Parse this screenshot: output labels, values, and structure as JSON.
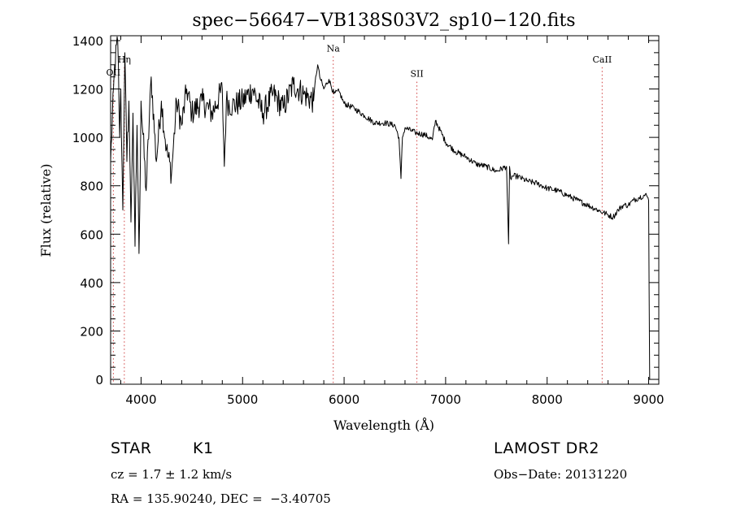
{
  "chart_data": {
    "type": "line",
    "title": "spec−56647−VB138S03V2_sp10−120.fits",
    "xlabel": "Wavelength (Å)",
    "ylabel": "Flux (relative)",
    "xlim": [
      3700,
      9100
    ],
    "ylim": [
      -20,
      1420
    ],
    "x_ticks": [
      4000,
      5000,
      6000,
      7000,
      8000,
      9000
    ],
    "x_tick_labels": [
      "4000",
      "5000",
      "6000",
      "7000",
      "8000",
      "9000"
    ],
    "y_ticks": [
      0,
      200,
      400,
      600,
      800,
      1000,
      1200,
      1400
    ],
    "y_tick_labels": [
      "0",
      "200",
      "400",
      "600",
      "800",
      "1000",
      "1200",
      "1400"
    ],
    "series": [
      {
        "name": "spectrum",
        "x": [
          3700,
          3740,
          3770,
          3790,
          3800,
          3820,
          3840,
          3860,
          3880,
          3900,
          3920,
          3940,
          3960,
          3980,
          4000,
          4050,
          4100,
          4150,
          4200,
          4250,
          4300,
          4350,
          4400,
          4450,
          4500,
          4600,
          4700,
          4800,
          4820,
          4840,
          4900,
          5000,
          5100,
          5200,
          5300,
          5400,
          5500,
          5600,
          5700,
          5720,
          5740,
          5760,
          5800,
          5850,
          5900,
          5950,
          6000,
          6100,
          6200,
          6300,
          6400,
          6500,
          6540,
          6560,
          6575,
          6600,
          6700,
          6800,
          6870,
          6900,
          7000,
          7100,
          7200,
          7300,
          7400,
          7500,
          7600,
          7620,
          7630,
          7640,
          7660,
          7700,
          7800,
          7900,
          8000,
          8100,
          8200,
          8300,
          8400,
          8500,
          8550,
          8600,
          8650,
          8700,
          8750,
          8800,
          8850,
          8900,
          8950,
          8980,
          9000,
          9010
        ],
        "y": [
          900,
          1300,
          1400,
          1000,
          1200,
          700,
          1350,
          900,
          1150,
          650,
          1100,
          550,
          1050,
          520,
          1150,
          780,
          1250,
          900,
          1150,
          950,
          850,
          1150,
          1050,
          1200,
          1100,
          1150,
          1100,
          1200,
          880,
          1150,
          1130,
          1150,
          1200,
          1100,
          1180,
          1120,
          1220,
          1180,
          1150,
          1250,
          1300,
          1250,
          1200,
          1240,
          1180,
          1190,
          1140,
          1120,
          1090,
          1060,
          1060,
          1050,
          1000,
          830,
          1000,
          1040,
          1020,
          1010,
          990,
          1070,
          980,
          940,
          920,
          890,
          880,
          860,
          880,
          560,
          880,
          830,
          840,
          840,
          820,
          810,
          790,
          780,
          760,
          740,
          720,
          700,
          690,
          680,
          670,
          700,
          720,
          720,
          740,
          750,
          760,
          760,
          740,
          0
        ]
      }
    ],
    "line_annotations": [
      {
        "label": "OII",
        "x": 3727,
        "label_y": 1255
      },
      {
        "label": "Hη",
        "x": 3835,
        "label_y": 1310
      },
      {
        "label": "Na",
        "x": 5893,
        "label_y": 1355
      },
      {
        "label": "SII",
        "x": 6717,
        "label_y": 1250
      },
      {
        "label": "CaII",
        "x": 8542,
        "label_y": 1310
      }
    ]
  },
  "info": {
    "object_class": "STAR",
    "subclass": "K1",
    "redshift_text": "cz = 1.7 ± 1.2 km/s",
    "coords_text": "RA = 135.90240, DEC =  −3.40705",
    "survey": "LAMOST DR2",
    "obs_date": "Obs−Date: 20131220"
  },
  "colors": {
    "axis": "#000000",
    "line": "#000000",
    "marker": "#d04040"
  }
}
